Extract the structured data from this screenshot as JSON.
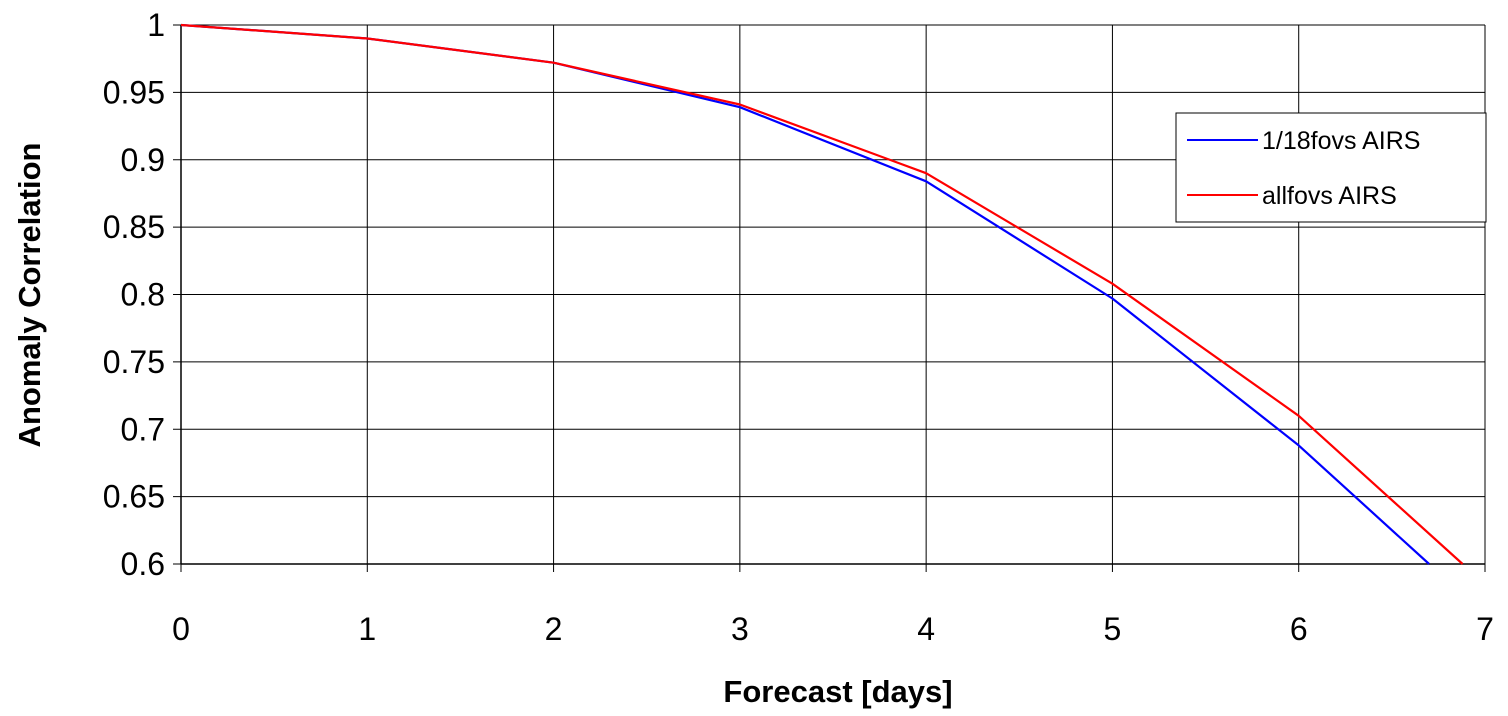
{
  "chart_data": {
    "type": "line",
    "title": "",
    "xlabel": "Forecast [days]",
    "ylabel": "Anomaly Correlation",
    "xlim": [
      0,
      7
    ],
    "ylim": [
      0.6,
      1
    ],
    "x_ticks": [
      "0",
      "1",
      "2",
      "3",
      "4",
      "5",
      "6",
      "7"
    ],
    "y_ticks": [
      "0.6",
      "0.65",
      "0.7",
      "0.75",
      "0.8",
      "0.85",
      "0.9",
      "0.95",
      "1"
    ],
    "grid": true,
    "legend_position": "right",
    "series": [
      {
        "name": "1/18fovs AIRS",
        "color": "#0000ff",
        "x": [
          0,
          1,
          2,
          3,
          4,
          5,
          6,
          6.7
        ],
        "y": [
          1.0,
          0.99,
          0.972,
          0.939,
          0.884,
          0.797,
          0.688,
          0.6
        ]
      },
      {
        "name": "allfovs AIRS",
        "color": "#ff0000",
        "x": [
          0,
          1,
          2,
          3,
          4,
          5,
          6,
          6.88
        ],
        "y": [
          1.0,
          0.99,
          0.972,
          0.941,
          0.89,
          0.808,
          0.71,
          0.6
        ]
      }
    ]
  }
}
